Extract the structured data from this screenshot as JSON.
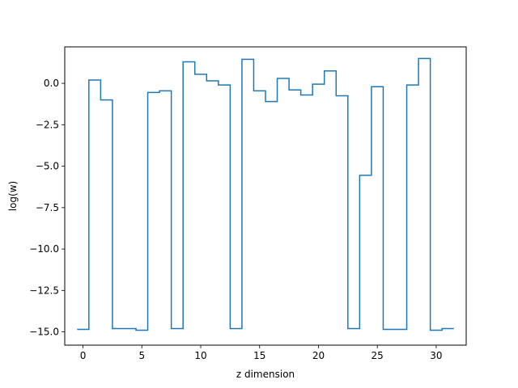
{
  "chart_data": {
    "type": "line",
    "drawstyle": "steps-mid",
    "title": "",
    "xlabel": "z dimension",
    "ylabel": "log(w)",
    "xlim": [
      -1.55,
      32.55
    ],
    "ylim": [
      -15.8,
      2.2
    ],
    "xticks": [
      0,
      5,
      10,
      15,
      20,
      25,
      30
    ],
    "xtick_labels": [
      "0",
      "5",
      "10",
      "15",
      "20",
      "25",
      "30"
    ],
    "yticks": [
      0.0,
      -2.5,
      -5.0,
      -7.5,
      -10.0,
      -12.5,
      -15.0
    ],
    "ytick_labels": [
      "0.0",
      "−2.5",
      "−5.0",
      "−7.5",
      "−10.0",
      "−12.5",
      "−15.0"
    ],
    "grid": false,
    "legend": "none",
    "line_color": "#1f77b4",
    "series": [
      {
        "x": [
          0,
          1,
          2,
          3,
          4,
          5,
          6,
          7,
          8,
          9,
          10,
          11,
          12,
          13,
          14,
          15,
          16,
          17,
          18,
          19,
          20,
          21,
          22,
          23,
          24,
          25,
          26,
          27,
          28,
          29,
          30,
          31
        ],
        "values": [
          -14.85,
          0.2,
          -1.0,
          -14.8,
          -14.8,
          -14.9,
          -0.55,
          -0.45,
          -14.8,
          1.3,
          0.55,
          0.15,
          -0.1,
          -14.8,
          1.45,
          -0.45,
          -1.1,
          0.3,
          -0.4,
          -0.7,
          -0.05,
          0.75,
          -0.75,
          -14.8,
          -5.55,
          -0.2,
          -14.85,
          -14.85,
          -0.1,
          1.5,
          -14.9,
          -14.8
        ]
      }
    ]
  }
}
